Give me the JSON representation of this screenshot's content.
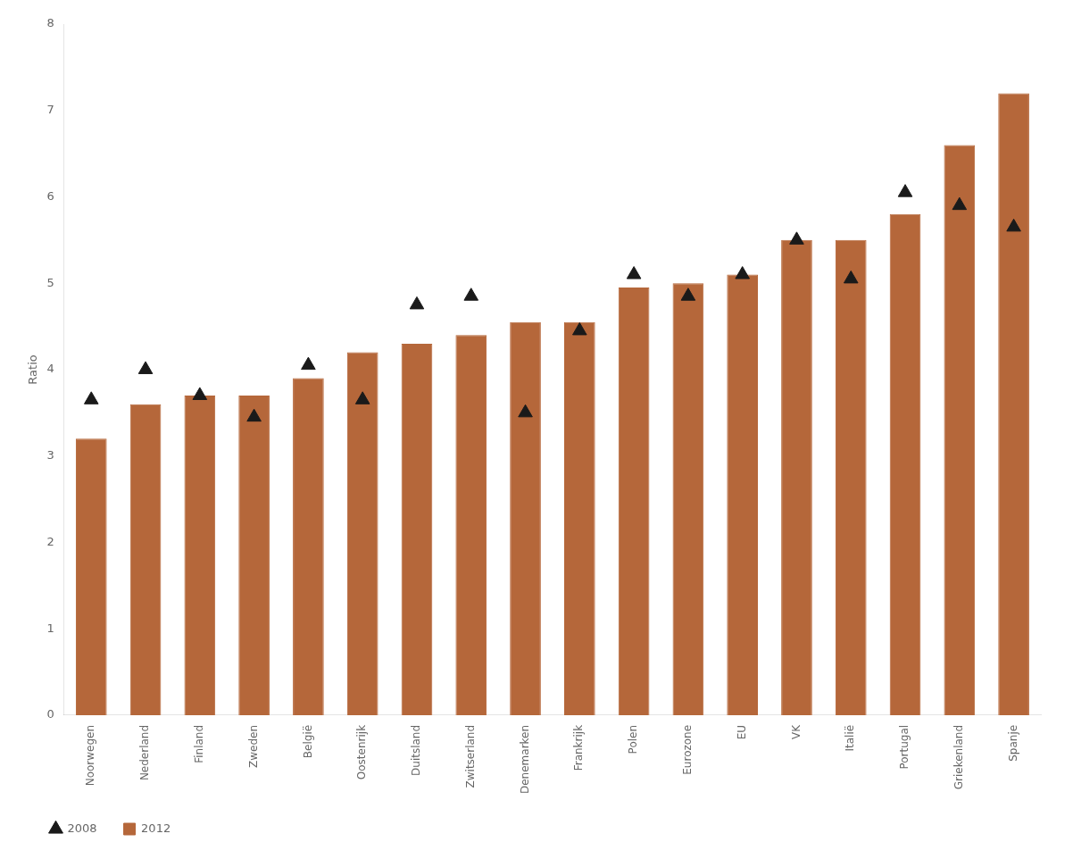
{
  "chart_data": {
    "type": "bar",
    "categories": [
      "Noorwegen",
      "Nederland",
      "Finland",
      "Zweden",
      "België",
      "Oostenrijk",
      "Duitsland",
      "Zwitserland",
      "Denemarken",
      "Frankrijk",
      "Polen",
      "Eurozone",
      "EU",
      "VK",
      "Italië",
      "Portugal",
      "Griekenland",
      "Spanje"
    ],
    "series": [
      {
        "name": "2008",
        "type": "scatter",
        "marker": "triangle",
        "color": "#1a1a1a",
        "values": [
          3.65,
          4.0,
          3.7,
          3.45,
          4.05,
          3.65,
          4.75,
          4.85,
          3.5,
          4.45,
          5.1,
          4.85,
          5.1,
          5.5,
          5.05,
          6.05,
          5.9,
          5.65
        ]
      },
      {
        "name": "2012",
        "type": "bar",
        "color": "#b5673a",
        "values": [
          3.2,
          3.6,
          3.7,
          3.7,
          3.9,
          4.2,
          4.3,
          4.4,
          4.55,
          4.55,
          4.95,
          5.0,
          5.1,
          5.5,
          5.5,
          5.8,
          6.6,
          7.2
        ]
      }
    ],
    "ylabel": "Ratio",
    "ylim": [
      0,
      8
    ],
    "yticks": [
      0,
      1,
      2,
      3,
      4,
      5,
      6,
      7,
      8
    ],
    "grid": false,
    "legend": "lower left"
  }
}
